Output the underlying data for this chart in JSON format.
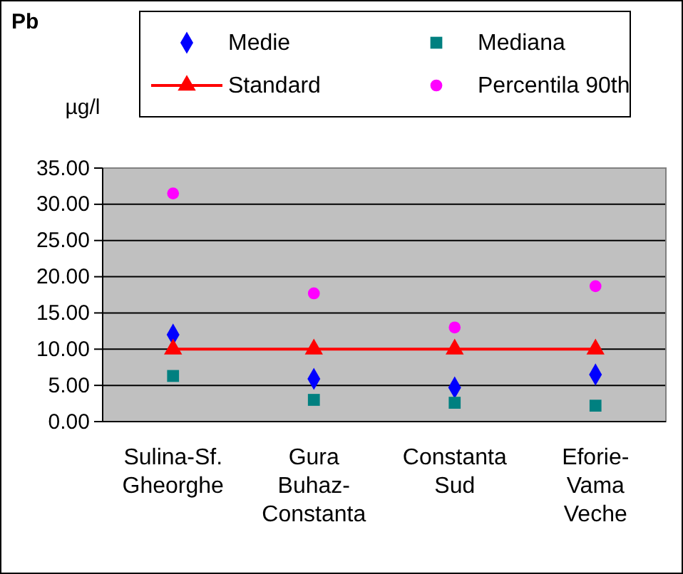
{
  "chart_data": {
    "type": "scatter",
    "title": "Pb",
    "ylabel": "µg/l",
    "categories": [
      "Sulina-Sf. Gheorghe",
      "Gura Buhaz-Constanta",
      "Constanta Sud",
      "Eforie-Vama Veche"
    ],
    "series": [
      {
        "name": "Medie",
        "color": "#0000ff",
        "marker": "diamond",
        "values": [
          12.0,
          5.9,
          4.7,
          6.5
        ]
      },
      {
        "name": "Mediana",
        "color": "#008080",
        "marker": "square",
        "values": [
          6.3,
          3.0,
          2.6,
          2.2
        ]
      },
      {
        "name": "Standard",
        "type": "line",
        "color": "#ff0000",
        "marker": "triangle",
        "values": [
          10,
          10,
          10,
          10
        ]
      },
      {
        "name": "Percentila 90th",
        "color": "#ff00ff",
        "marker": "circle",
        "values": [
          31.5,
          17.7,
          13.0,
          18.7
        ]
      }
    ],
    "ylim": [
      0,
      35
    ],
    "yticks": [
      {
        "value": 0,
        "label": "0.00"
      },
      {
        "value": 5,
        "label": "5.00"
      },
      {
        "value": 10,
        "label": "10.00"
      },
      {
        "value": 15,
        "label": "15.00"
      },
      {
        "value": 20,
        "label": "20.00"
      },
      {
        "value": 25,
        "label": "25.00"
      },
      {
        "value": 30,
        "label": "30.00"
      },
      {
        "value": 35,
        "label": "35.00"
      }
    ],
    "grid": "y",
    "legend": "top"
  }
}
